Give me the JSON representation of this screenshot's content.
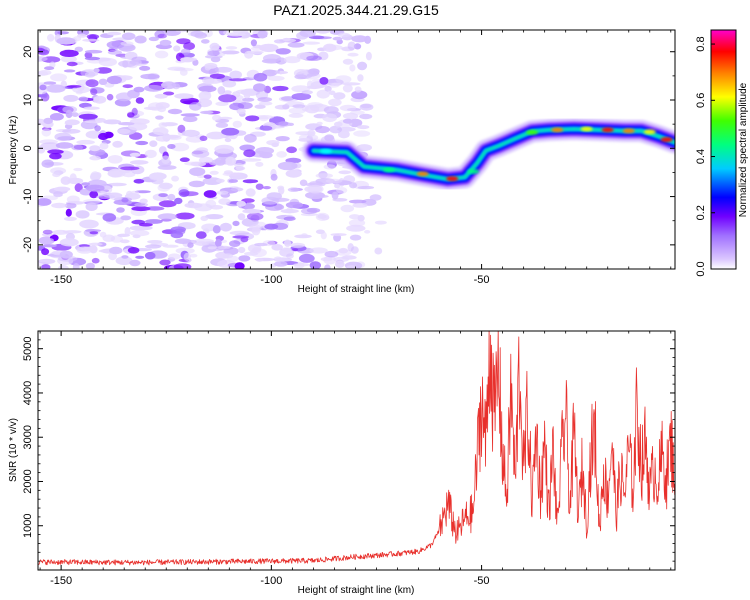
{
  "chart_data": [
    {
      "type": "heatmap",
      "title": "PAZ1.2025.344.21.29.G15",
      "xlabel": "Height of straight line (km)",
      "ylabel": "Frequency (Hz)",
      "xlim": [
        -155.5,
        -4
      ],
      "ylim": [
        -25,
        24.5
      ],
      "xticks": [
        -150,
        -100,
        -50
      ],
      "yticks": [
        -20,
        -10,
        0,
        10,
        20
      ],
      "colorbar": {
        "label": "Normalized spectral amplitude",
        "range": [
          0,
          0.85
        ],
        "ticks": [
          "0.0",
          "0.2",
          "0.4",
          "0.6",
          "0.8"
        ],
        "tick_values": [
          0,
          0.2,
          0.4,
          0.6,
          0.8
        ],
        "colors": [
          "#ffffff",
          "#ab82ff",
          "#7f00ff",
          "#0000ff",
          "#00ffff",
          "#00ff00",
          "#ffff00",
          "#ff7f00",
          "#ff0000",
          "#ff00ff"
        ]
      },
      "ridge": {
        "x": [
          -90,
          -82,
          -78,
          -70,
          -64,
          -58,
          -54,
          -51,
          -49,
          -46,
          -42,
          -38,
          -34,
          -28,
          -22,
          -16,
          -12,
          -8,
          -4
        ],
        "y": [
          -0.5,
          -0.8,
          -3.8,
          -4.5,
          -5.5,
          -6.4,
          -6.0,
          -3.0,
          -0.5,
          0.5,
          2.0,
          3.5,
          3.8,
          4.0,
          3.8,
          3.6,
          3.6,
          2.5,
          1.2
        ]
      },
      "noise_region_x": [
        -155.5,
        -77
      ]
    },
    {
      "type": "line",
      "xlabel": "Height of straight line (km)",
      "ylabel": "SNR (10 * v/v)",
      "xlim": [
        -155.5,
        -4
      ],
      "ylim": [
        0,
        5400
      ],
      "xticks": [
        -150,
        -100,
        -50
      ],
      "yticks": [
        1000,
        2000,
        3000,
        4000,
        5000
      ],
      "series": [
        {
          "name": "SNR",
          "color": "#e8302c",
          "x": [
            -155.5,
            -130,
            -110,
            -90,
            -80,
            -75,
            -70,
            -65,
            -62,
            -60,
            -58,
            -56,
            -54,
            -52,
            -50,
            -49,
            -48,
            -47,
            -46,
            -45,
            -44,
            -43,
            -42,
            -41,
            -40,
            -39,
            -38,
            -37,
            -36,
            -35,
            -34,
            -33,
            -32,
            -31,
            -30,
            -29,
            -28,
            -27,
            -26,
            -25,
            -24,
            -23,
            -22,
            -21,
            -20,
            -19,
            -18,
            -17,
            -16,
            -15,
            -14,
            -13,
            -12,
            -11,
            -10,
            -9,
            -8,
            -7,
            -6,
            -5,
            -4
          ],
          "y": [
            180,
            170,
            190,
            210,
            300,
            330,
            370,
            420,
            560,
            900,
            1500,
            800,
            1150,
            1300,
            3900,
            2800,
            5350,
            3300,
            4600,
            2600,
            1600,
            4100,
            1900,
            4700,
            2200,
            3700,
            1500,
            3200,
            1700,
            2900,
            1300,
            2700,
            1000,
            2500,
            3600,
            1400,
            3100,
            1200,
            2400,
            1000,
            2700,
            3100,
            900,
            2300,
            1600,
            3000,
            1200,
            2200,
            1700,
            2700,
            1800,
            3800,
            2300,
            2900,
            1800,
            2300,
            2000,
            2600,
            2100,
            2900,
            2200
          ]
        }
      ]
    }
  ]
}
